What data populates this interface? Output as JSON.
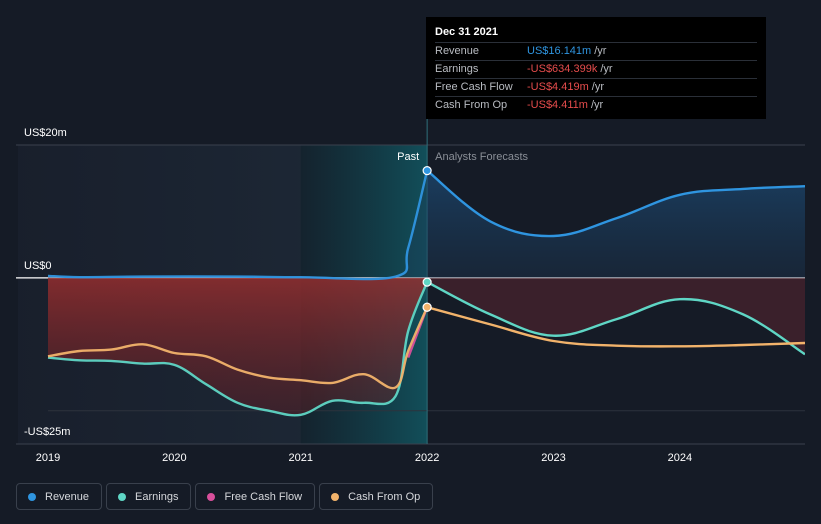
{
  "chart_data": {
    "type": "area",
    "title": "",
    "xlabel": "",
    "ylabel": "",
    "y_unit_labels": {
      "top": "US$20m",
      "zero": "US$0",
      "bottom": "-US$25m"
    },
    "ylim": [
      -25,
      20
    ],
    "xlim": [
      2019,
      2024.99
    ],
    "x_ticks": [
      "2019",
      "2020",
      "2021",
      "2022",
      "2023",
      "2024"
    ],
    "x_tick_values": [
      2019,
      2020,
      2021,
      2022,
      2023,
      2024
    ],
    "past_label": "Past",
    "forecast_label": "Analysts Forecasts",
    "divider_x": 2022.0,
    "series": [
      {
        "name": "Revenue",
        "color": "#2f95e0",
        "points": [
          [
            2019.0,
            0.3
          ],
          [
            2019.25,
            0.1
          ],
          [
            2019.75,
            0.2
          ],
          [
            2020.5,
            0.2
          ],
          [
            2021.0,
            0.1
          ],
          [
            2021.75,
            0.2
          ],
          [
            2021.85,
            4.5
          ],
          [
            2022.0,
            16.141
          ],
          [
            2022.5,
            8.5
          ],
          [
            2023.0,
            6.3
          ],
          [
            2023.5,
            9.0
          ],
          [
            2024.0,
            12.5
          ],
          [
            2024.5,
            13.4
          ],
          [
            2024.99,
            13.8
          ]
        ]
      },
      {
        "name": "Earnings",
        "color": "#5fd6c5",
        "points": [
          [
            2019.0,
            -12.0
          ],
          [
            2019.25,
            -12.4
          ],
          [
            2019.5,
            -12.5
          ],
          [
            2019.75,
            -12.9
          ],
          [
            2020.0,
            -13.1
          ],
          [
            2020.25,
            -16.0
          ],
          [
            2020.5,
            -18.8
          ],
          [
            2020.75,
            -20.0
          ],
          [
            2021.0,
            -20.6
          ],
          [
            2021.25,
            -18.5
          ],
          [
            2021.5,
            -18.8
          ],
          [
            2021.75,
            -17.8
          ],
          [
            2021.85,
            -8.0
          ],
          [
            2022.0,
            -0.634
          ],
          [
            2022.5,
            -5.5
          ],
          [
            2023.0,
            -8.7
          ],
          [
            2023.5,
            -6.2
          ],
          [
            2024.0,
            -3.2
          ],
          [
            2024.5,
            -5.5
          ],
          [
            2024.99,
            -11.5
          ]
        ]
      },
      {
        "name": "Free Cash Flow",
        "color": "#d94f9b",
        "points": [
          [
            2021.85,
            -12.0
          ],
          [
            2022.0,
            -4.419
          ]
        ]
      },
      {
        "name": "Cash From Op",
        "color": "#f2b36b",
        "points": [
          [
            2019.0,
            -11.8
          ],
          [
            2019.25,
            -11.0
          ],
          [
            2019.5,
            -10.8
          ],
          [
            2019.75,
            -10.0
          ],
          [
            2020.0,
            -11.3
          ],
          [
            2020.25,
            -11.8
          ],
          [
            2020.5,
            -13.8
          ],
          [
            2020.75,
            -15.0
          ],
          [
            2021.0,
            -15.4
          ],
          [
            2021.25,
            -15.8
          ],
          [
            2021.5,
            -14.5
          ],
          [
            2021.75,
            -16.5
          ],
          [
            2021.85,
            -11.0
          ],
          [
            2022.0,
            -4.411
          ],
          [
            2022.5,
            -7.0
          ],
          [
            2023.0,
            -9.5
          ],
          [
            2023.5,
            -10.2
          ],
          [
            2024.0,
            -10.3
          ],
          [
            2024.5,
            -10.1
          ],
          [
            2024.99,
            -9.8
          ]
        ]
      }
    ]
  },
  "tooltip": {
    "date": "Dec 31 2021",
    "rows": [
      {
        "label": "Revenue",
        "value": "US$16.141m",
        "unit": "/yr",
        "color": "#2f95e0"
      },
      {
        "label": "Earnings",
        "value": "-US$634.399k",
        "unit": "/yr",
        "color": "#e64c4c"
      },
      {
        "label": "Free Cash Flow",
        "value": "-US$4.419m",
        "unit": "/yr",
        "color": "#e64c4c"
      },
      {
        "label": "Cash From Op",
        "value": "-US$4.411m",
        "unit": "/yr",
        "color": "#e64c4c"
      }
    ]
  },
  "legend": [
    {
      "label": "Revenue",
      "color": "#2f95e0"
    },
    {
      "label": "Earnings",
      "color": "#5fd6c5"
    },
    {
      "label": "Free Cash Flow",
      "color": "#d94f9b"
    },
    {
      "label": "Cash From Op",
      "color": "#f2b36b"
    }
  ]
}
